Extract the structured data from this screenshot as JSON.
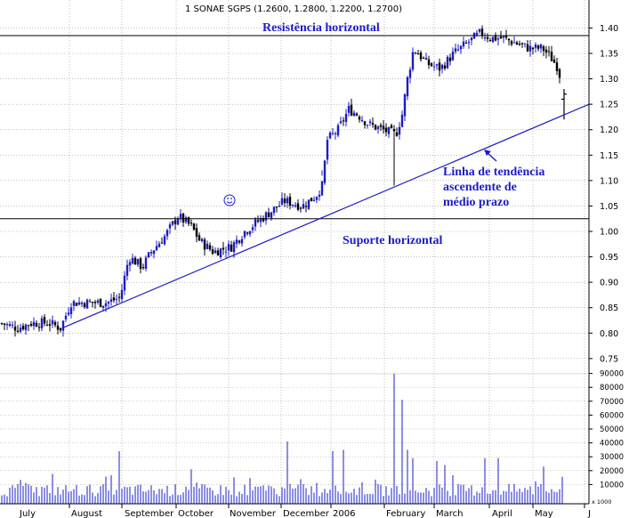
{
  "chart_data": {
    "type": "ohlc",
    "title": "1 SONAE SGPS (1.2600, 1.2800, 1.2200, 1.2700)",
    "price_axis": {
      "ylim": [
        0.72,
        1.455
      ],
      "ticks": [
        "0.75",
        "0.80",
        "0.85",
        "0.90",
        "0.95",
        "1.00",
        "1.05",
        "1.10",
        "1.15",
        "1.20",
        "1.25",
        "1.30",
        "1.35",
        "1.40"
      ]
    },
    "volume_axis": {
      "unit_label": "x 1000",
      "ticks": [
        "10000",
        "20000",
        "30000",
        "40000",
        "50000",
        "60000",
        "70000",
        "80000",
        "90000"
      ]
    },
    "x_axis": {
      "month_labels": [
        "July",
        "August",
        "September",
        "October",
        "November",
        "December",
        "2006",
        "February",
        "March",
        "April",
        "May",
        "J"
      ]
    },
    "price_path": [
      [
        0,
        0.82
      ],
      [
        20,
        0.81
      ],
      [
        35,
        0.82
      ],
      [
        55,
        0.82
      ],
      [
        68,
        0.81
      ],
      [
        80,
        0.86
      ],
      [
        100,
        0.86
      ],
      [
        120,
        0.86
      ],
      [
        135,
        0.87
      ],
      [
        145,
        0.95
      ],
      [
        160,
        0.93
      ],
      [
        170,
        0.96
      ],
      [
        185,
        0.99
      ],
      [
        200,
        1.03
      ],
      [
        215,
        1.01
      ],
      [
        225,
        0.98
      ],
      [
        240,
        0.96
      ],
      [
        260,
        0.97
      ],
      [
        275,
        1.0
      ],
      [
        290,
        1.02
      ],
      [
        305,
        1.04
      ],
      [
        320,
        1.06
      ],
      [
        340,
        1.05
      ],
      [
        355,
        1.07
      ],
      [
        362,
        1.09
      ],
      [
        368,
        1.18
      ],
      [
        380,
        1.2
      ],
      [
        392,
        1.24
      ],
      [
        402,
        1.23
      ],
      [
        415,
        1.21
      ],
      [
        430,
        1.2
      ],
      [
        445,
        1.19
      ],
      [
        452,
        1.23
      ],
      [
        458,
        1.3
      ],
      [
        465,
        1.36
      ],
      [
        480,
        1.33
      ],
      [
        495,
        1.32
      ],
      [
        510,
        1.35
      ],
      [
        525,
        1.37
      ],
      [
        540,
        1.39
      ],
      [
        552,
        1.38
      ],
      [
        565,
        1.38
      ],
      [
        580,
        1.37
      ],
      [
        595,
        1.36
      ],
      [
        610,
        1.36
      ],
      [
        620,
        1.34
      ],
      [
        628,
        1.32
      ],
      [
        634,
        1.25
      ]
    ],
    "dips": [
      [
        362,
        1.12
      ],
      [
        444,
        1.09
      ]
    ],
    "last_bar": {
      "open": 1.26,
      "high": 1.28,
      "low": 1.22,
      "close": 1.27
    },
    "spikes": [
      [
        135,
        34000
      ],
      [
        215,
        21000
      ],
      [
        323,
        41000
      ],
      [
        374,
        34000
      ],
      [
        387,
        35000
      ],
      [
        444,
        90000
      ],
      [
        452,
        71000
      ],
      [
        458,
        35000
      ],
      [
        464,
        29000
      ],
      [
        491,
        27000
      ],
      [
        500,
        24000
      ],
      [
        545,
        29000
      ],
      [
        560,
        29000
      ],
      [
        610,
        23000
      ],
      [
        634,
        25000
      ]
    ],
    "lines": [
      {
        "label": "Resistência horizontal",
        "kind": "horizontal",
        "y": 1.385
      },
      {
        "label": "Suporte horizontal",
        "kind": "horizontal",
        "y": 1.025
      },
      {
        "label": "Linha de tendência ascendente de médio prazo",
        "kind": "trend",
        "from": {
          "x": 70,
          "y": 0.81
        },
        "to": {
          "x": 662,
          "y": 1.25
        }
      }
    ],
    "annotations": [
      {
        "text": "Resistência horizontal"
      },
      {
        "text": "Suporte horizontal"
      },
      {
        "lines": [
          "Linha de tendência",
          "ascendente de",
          "médio prazo"
        ]
      }
    ],
    "grid": true,
    "colors": {
      "candle": "#000000",
      "up_bar": "#1c1cc8",
      "volume": "#1c1cc8",
      "lines": "#1c1cc8",
      "grid": "#9a9a9a",
      "annotation": "#1c1cc8"
    }
  }
}
